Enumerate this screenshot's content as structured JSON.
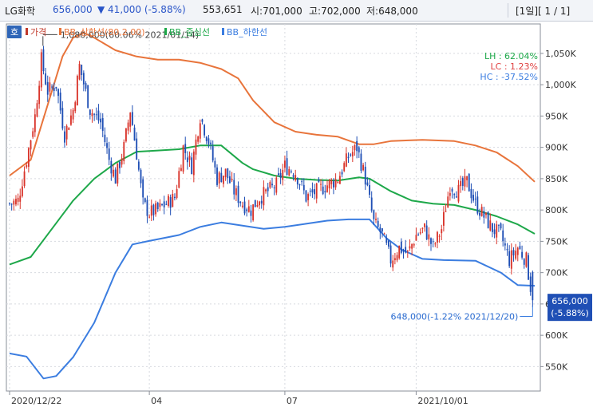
{
  "header": {
    "stock_name": "LG화학",
    "price": "656,000",
    "change": "▼ 41,000 (-5.88%)",
    "volume": "553,651",
    "open": "시:701,000",
    "high": "고:702,000",
    "low": "저:648,000",
    "period": "[1일][ 1 / 1]"
  },
  "chart_data": {
    "type": "candlestick",
    "mode_badge": "호",
    "legend": [
      {
        "label": "가격",
        "color": "#c0392b"
      },
      {
        "label": "BB_상한선(80,2.00)",
        "color": "#e8743b"
      },
      {
        "label": "BB_중심선",
        "color": "#1ea84a"
      },
      {
        "label": "BB_하한선",
        "color": "#3b7de0"
      }
    ],
    "stats": [
      {
        "text": "LH :  62.04%",
        "color": "#1ea84a"
      },
      {
        "text": "LC :   1.23%",
        "color": "#e04040"
      },
      {
        "text": "HC : -37.52%",
        "color": "#3b7de0"
      }
    ],
    "y_ticks": [
      550000,
      600000,
      650000,
      700000,
      750000,
      800000,
      850000,
      900000,
      950000,
      1000000,
      1050000
    ],
    "y_tick_labels": [
      "550K",
      "600K",
      "650K",
      "700K",
      "750K",
      "800K",
      "850K",
      "900K",
      "950K",
      "1,000K",
      "1,050K"
    ],
    "ylim": [
      511000,
      1097000
    ],
    "x_tick_labels": [
      {
        "label": "2020/12/22",
        "index": 0
      },
      {
        "label": "04",
        "index": 66
      },
      {
        "label": "07",
        "index": 130
      },
      {
        "label": "2021/10/01",
        "index": 192
      }
    ],
    "price_label": "656,000",
    "price_change_label": "(-5.88%)",
    "last_price": 656000,
    "annotation_high": {
      "text": "1,080,000(60.06% 2021/01/14)",
      "value": 1080000,
      "index": 15
    },
    "annotation_low": {
      "text": "648,000(-1.22% 2021/12/20)",
      "value": 648000,
      "index": 247
    },
    "upper_band": [
      [
        0,
        855000
      ],
      [
        10,
        880000
      ],
      [
        20,
        990000
      ],
      [
        25,
        1045000
      ],
      [
        30,
        1075000
      ],
      [
        35,
        1083000
      ],
      [
        40,
        1075000
      ],
      [
        50,
        1055000
      ],
      [
        60,
        1045000
      ],
      [
        70,
        1040000
      ],
      [
        80,
        1040000
      ],
      [
        90,
        1035000
      ],
      [
        100,
        1025000
      ],
      [
        108,
        1010000
      ],
      [
        115,
        975000
      ],
      [
        125,
        940000
      ],
      [
        135,
        925000
      ],
      [
        145,
        920000
      ],
      [
        155,
        917000
      ],
      [
        165,
        905000
      ],
      [
        172,
        905000
      ],
      [
        180,
        910000
      ],
      [
        195,
        912000
      ],
      [
        210,
        910000
      ],
      [
        220,
        903000
      ],
      [
        230,
        892000
      ],
      [
        240,
        870000
      ],
      [
        248,
        845000
      ]
    ],
    "middle_band": [
      [
        0,
        713000
      ],
      [
        10,
        725000
      ],
      [
        20,
        770000
      ],
      [
        30,
        815000
      ],
      [
        40,
        850000
      ],
      [
        50,
        875000
      ],
      [
        60,
        893000
      ],
      [
        70,
        895000
      ],
      [
        80,
        897000
      ],
      [
        90,
        903000
      ],
      [
        100,
        903000
      ],
      [
        110,
        875000
      ],
      [
        115,
        865000
      ],
      [
        125,
        855000
      ],
      [
        135,
        850000
      ],
      [
        145,
        848000
      ],
      [
        155,
        847000
      ],
      [
        165,
        852000
      ],
      [
        170,
        850000
      ],
      [
        180,
        830000
      ],
      [
        190,
        815000
      ],
      [
        200,
        810000
      ],
      [
        210,
        808000
      ],
      [
        220,
        800000
      ],
      [
        230,
        790000
      ],
      [
        240,
        777000
      ],
      [
        248,
        762000
      ]
    ],
    "lower_band": [
      [
        0,
        571000
      ],
      [
        8,
        566000
      ],
      [
        16,
        531000
      ],
      [
        22,
        535000
      ],
      [
        30,
        565000
      ],
      [
        40,
        620000
      ],
      [
        50,
        700000
      ],
      [
        58,
        745000
      ],
      [
        65,
        750000
      ],
      [
        80,
        760000
      ],
      [
        90,
        773000
      ],
      [
        100,
        780000
      ],
      [
        110,
        775000
      ],
      [
        120,
        770000
      ],
      [
        130,
        773000
      ],
      [
        140,
        778000
      ],
      [
        150,
        783000
      ],
      [
        160,
        785000
      ],
      [
        170,
        785000
      ],
      [
        178,
        755000
      ],
      [
        185,
        737000
      ],
      [
        195,
        722000
      ],
      [
        205,
        720000
      ],
      [
        220,
        719000
      ],
      [
        232,
        700000
      ],
      [
        240,
        680000
      ],
      [
        248,
        679000
      ]
    ],
    "price_path": [
      [
        0,
        810000
      ],
      [
        4,
        815000
      ],
      [
        8,
        880000
      ],
      [
        12,
        950000
      ],
      [
        15,
        1040000
      ],
      [
        18,
        990000
      ],
      [
        22,
        1000000
      ],
      [
        26,
        920000
      ],
      [
        30,
        960000
      ],
      [
        33,
        1030000
      ],
      [
        38,
        960000
      ],
      [
        43,
        940000
      ],
      [
        47,
        880000
      ],
      [
        50,
        850000
      ],
      [
        54,
        900000
      ],
      [
        57,
        960000
      ],
      [
        60,
        890000
      ],
      [
        63,
        810000
      ],
      [
        66,
        795000
      ],
      [
        70,
        800000
      ],
      [
        74,
        810000
      ],
      [
        78,
        820000
      ],
      [
        82,
        900000
      ],
      [
        86,
        870000
      ],
      [
        90,
        950000
      ],
      [
        94,
        910000
      ],
      [
        98,
        850000
      ],
      [
        102,
        860000
      ],
      [
        106,
        830000
      ],
      [
        110,
        810000
      ],
      [
        114,
        800000
      ],
      [
        118,
        820000
      ],
      [
        122,
        830000
      ],
      [
        126,
        840000
      ],
      [
        130,
        870000
      ],
      [
        135,
        860000
      ],
      [
        140,
        820000
      ],
      [
        145,
        830000
      ],
      [
        150,
        840000
      ],
      [
        155,
        850000
      ],
      [
        160,
        885000
      ],
      [
        164,
        900000
      ],
      [
        168,
        850000
      ],
      [
        172,
        780000
      ],
      [
        176,
        760000
      ],
      [
        180,
        720000
      ],
      [
        184,
        740000
      ],
      [
        188,
        730000
      ],
      [
        192,
        760000
      ],
      [
        196,
        770000
      ],
      [
        200,
        740000
      ],
      [
        204,
        770000
      ],
      [
        208,
        840000
      ],
      [
        212,
        830000
      ],
      [
        216,
        845000
      ],
      [
        220,
        810000
      ],
      [
        224,
        790000
      ],
      [
        228,
        770000
      ],
      [
        232,
        760000
      ],
      [
        236,
        720000
      ],
      [
        240,
        740000
      ],
      [
        244,
        720000
      ],
      [
        247,
        656000
      ]
    ]
  }
}
